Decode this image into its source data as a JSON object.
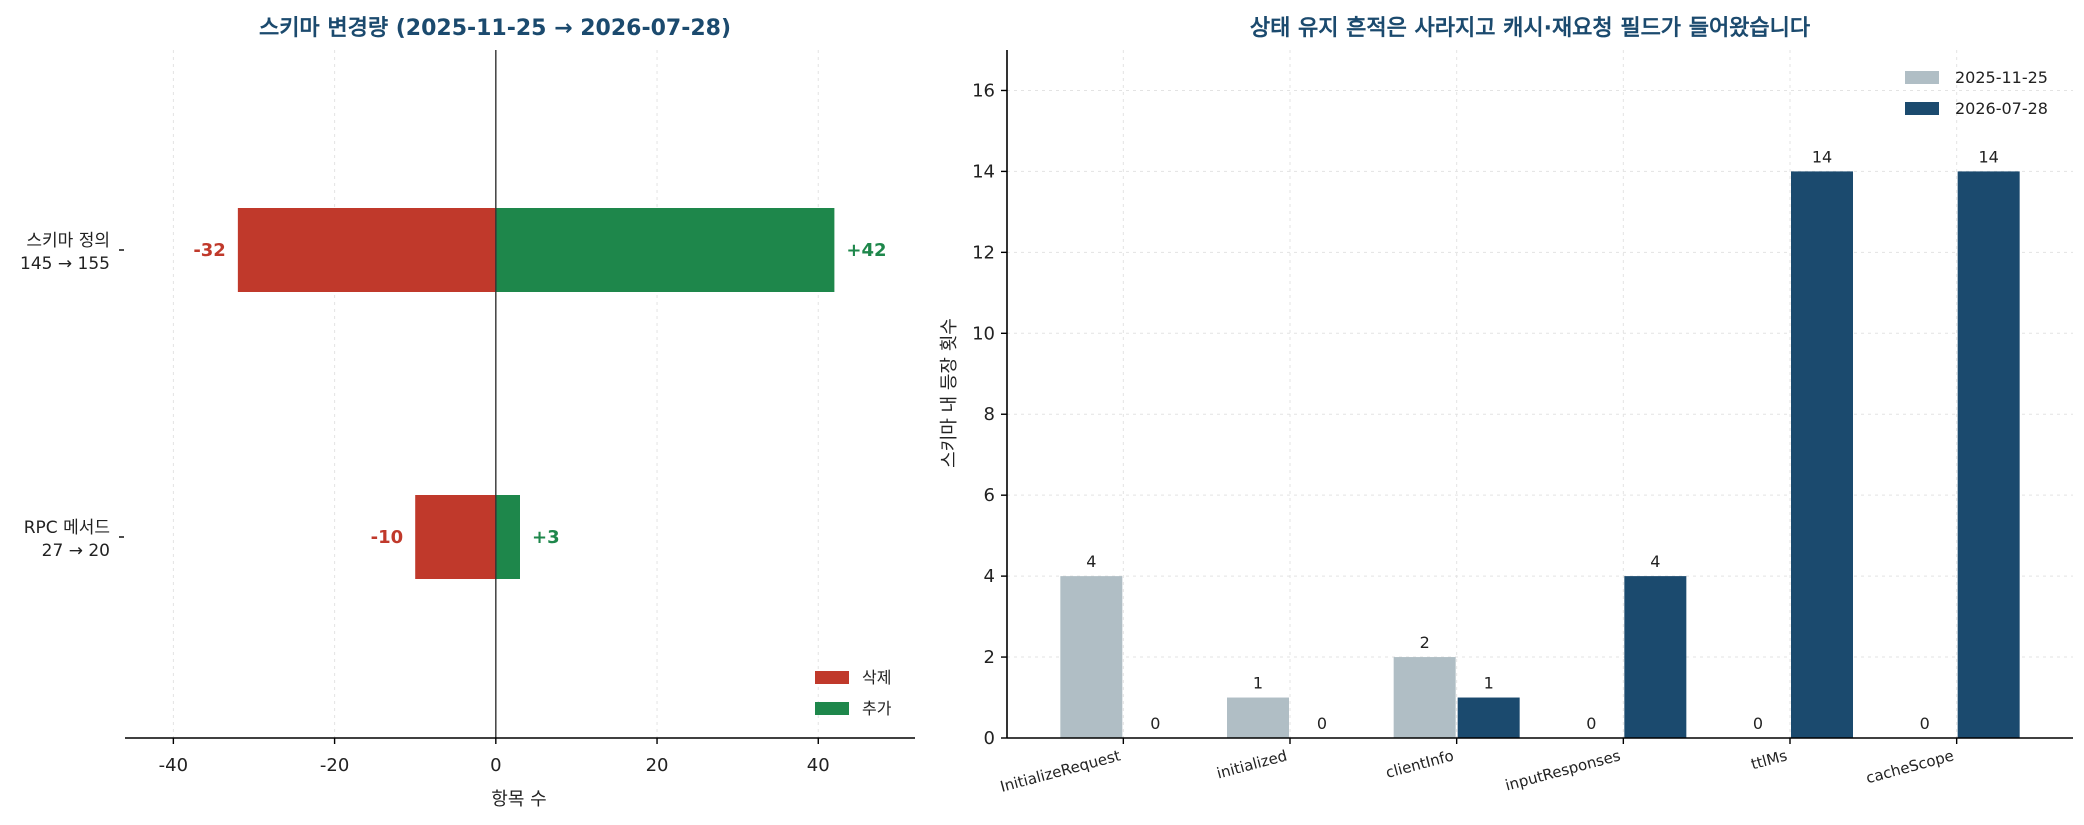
{
  "chart_data": [
    {
      "type": "bar",
      "orientation": "horizontal",
      "title": "스키마 변경량 (2025-11-25 → 2026-07-28)",
      "xlabel": "항목 수",
      "ylabel": "",
      "xlim": [
        -46,
        52
      ],
      "xticks": [
        -40,
        -20,
        0,
        20,
        40
      ],
      "grid": true,
      "legend_position": "bottom-right",
      "categories": [
        {
          "line1": "스키마 정의",
          "line2": "145 → 155"
        },
        {
          "line1": "RPC 메서드",
          "line2": "27 → 20"
        }
      ],
      "series": [
        {
          "name": "삭제",
          "color": "#c0392b",
          "values": [
            -32,
            -10
          ],
          "labels": [
            "-32",
            "-10"
          ]
        },
        {
          "name": "추가",
          "color": "#1e874b",
          "values": [
            42,
            3
          ],
          "labels": [
            "+42",
            "+3"
          ]
        }
      ]
    },
    {
      "type": "bar",
      "title": "상태 유지 흔적은 사라지고 캐시·재요청 필드가 들어왔습니다",
      "xlabel": "",
      "ylabel": "스키마 내 등장 횟수",
      "ylim": [
        0,
        17
      ],
      "yticks": [
        0,
        2,
        4,
        6,
        8,
        10,
        12,
        14,
        16
      ],
      "grid": true,
      "legend_position": "top-right",
      "categories": [
        "InitializeRequest",
        "initialized",
        "clientInfo",
        "inputResponses",
        "ttlMs",
        "cacheScope"
      ],
      "series": [
        {
          "name": "2025-11-25",
          "color": "#b0bec5",
          "values": [
            4,
            1,
            2,
            0,
            0,
            0
          ]
        },
        {
          "name": "2026-07-28",
          "color": "#1b4a6e",
          "values": [
            0,
            0,
            1,
            4,
            14,
            14
          ]
        }
      ]
    }
  ]
}
